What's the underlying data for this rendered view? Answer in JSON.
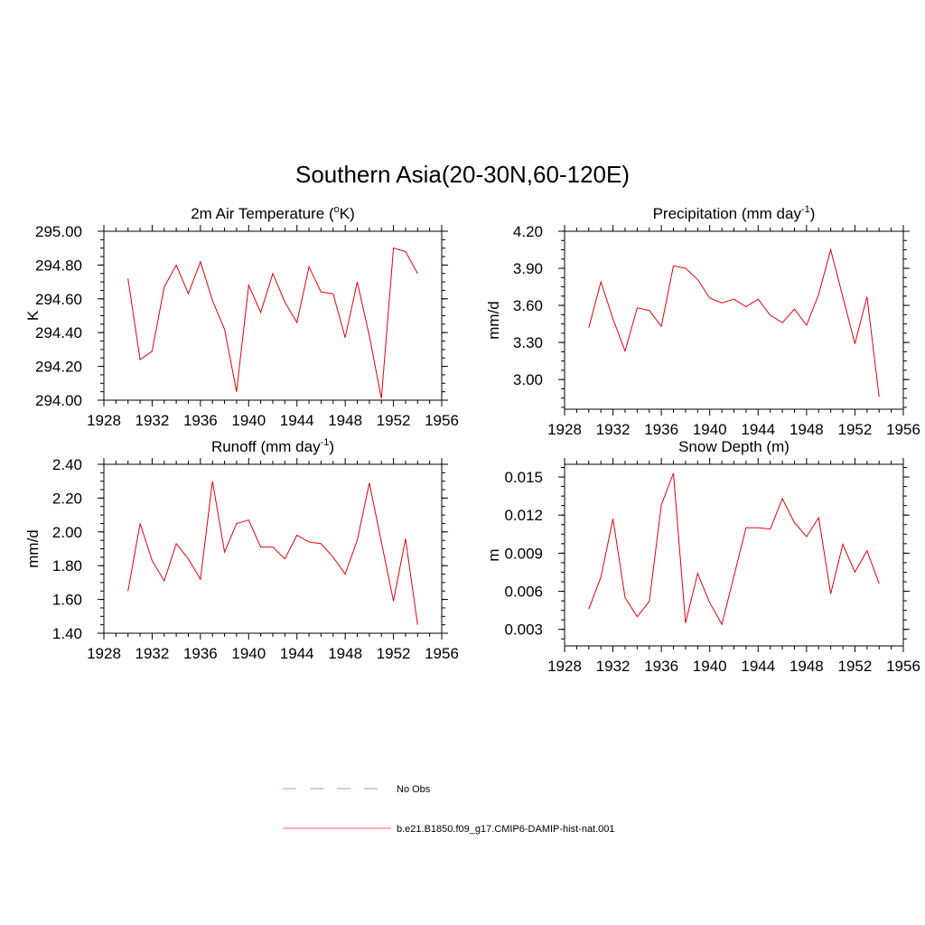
{
  "figure": {
    "title": "Southern Asia(20-30N,60-120E)",
    "x_ticks": [
      "1928",
      "1932",
      "1936",
      "1940",
      "1944",
      "1948",
      "1952",
      "1956"
    ]
  },
  "legend": {
    "entries": [
      {
        "label": "No Obs",
        "color": "#9999ff",
        "style": "dashed"
      },
      {
        "label": "b.e21.B1850.f09_g17.CMIP6-DAMIP-hist-nat.001",
        "color": "#ff6666",
        "style": "solid"
      }
    ]
  },
  "chart_data": [
    {
      "type": "line",
      "title": "2m Air Temperature (",
      "title_sup": "o",
      "title_suffix": "K)",
      "ylabel": "K",
      "xlim": [
        1928,
        1956
      ],
      "ylim": [
        294.0,
        295.0
      ],
      "y_ticks": [
        "294.00",
        "294.20",
        "294.40",
        "294.60",
        "294.80",
        "295.00"
      ],
      "y_minor_step": 0.05,
      "line_color": "#e8000b",
      "series": [
        {
          "name": "b.e21.B1850.f09_g17.CMIP6-DAMIP-hist-nat.001",
          "x": [
            1930,
            1931,
            1932,
            1933,
            1934,
            1935,
            1936,
            1937,
            1938,
            1939,
            1940,
            1941,
            1942,
            1943,
            1944,
            1945,
            1946,
            1947,
            1948,
            1949,
            1950,
            1951,
            1952,
            1953,
            1954
          ],
          "y": [
            294.72,
            294.24,
            294.29,
            294.67,
            294.8,
            294.63,
            294.82,
            294.59,
            294.42,
            294.05,
            294.68,
            294.52,
            294.75,
            294.58,
            294.46,
            294.79,
            294.64,
            294.63,
            294.37,
            294.7,
            294.38,
            294.01,
            294.9,
            294.88,
            294.75
          ]
        }
      ]
    },
    {
      "type": "line",
      "title": "Precipitation (mm day",
      "title_sup": "-1",
      "title_suffix": ")",
      "ylabel": "mm/d",
      "xlim": [
        1928,
        1956
      ],
      "ylim": [
        2.76,
        4.2
      ],
      "y_ticks": [
        "3.00",
        "3.30",
        "3.60",
        "3.90",
        "4.20"
      ],
      "y_minor_step": 0.075,
      "line_color": "#e8000b",
      "series": [
        {
          "name": "b.e21.B1850.f09_g17.CMIP6-DAMIP-hist-nat.001",
          "x": [
            1930,
            1931,
            1932,
            1933,
            1934,
            1935,
            1936,
            1937,
            1938,
            1939,
            1940,
            1941,
            1942,
            1943,
            1944,
            1945,
            1946,
            1947,
            1948,
            1949,
            1950,
            1951,
            1952,
            1953,
            1954
          ],
          "y": [
            3.42,
            3.79,
            3.49,
            3.23,
            3.58,
            3.56,
            3.43,
            3.92,
            3.9,
            3.81,
            3.66,
            3.62,
            3.65,
            3.59,
            3.65,
            3.52,
            3.46,
            3.57,
            3.44,
            3.69,
            4.05,
            3.67,
            3.29,
            3.67,
            2.86
          ]
        }
      ]
    },
    {
      "type": "line",
      "title": "Runoff (mm day",
      "title_sup": "-1",
      "title_suffix": ")",
      "ylabel": "mm/d",
      "xlim": [
        1928,
        1956
      ],
      "ylim": [
        1.4,
        2.4
      ],
      "y_ticks": [
        "1.40",
        "1.60",
        "1.80",
        "2.00",
        "2.20",
        "2.40"
      ],
      "y_minor_step": 0.05,
      "line_color": "#e8000b",
      "series": [
        {
          "name": "b.e21.B1850.f09_g17.CMIP6-DAMIP-hist-nat.001",
          "x": [
            1930,
            1931,
            1932,
            1933,
            1934,
            1935,
            1936,
            1937,
            1938,
            1939,
            1940,
            1941,
            1942,
            1943,
            1944,
            1945,
            1946,
            1947,
            1948,
            1949,
            1950,
            1951,
            1952,
            1953,
            1954
          ],
          "y": [
            1.65,
            2.05,
            1.83,
            1.71,
            1.93,
            1.84,
            1.72,
            2.3,
            1.88,
            2.05,
            2.07,
            1.91,
            1.91,
            1.84,
            1.98,
            1.94,
            1.93,
            1.85,
            1.75,
            1.95,
            2.29,
            1.94,
            1.59,
            1.96,
            1.45
          ]
        }
      ]
    },
    {
      "type": "line",
      "title": "Snow Depth (m)",
      "title_sup": "",
      "title_suffix": "",
      "ylabel": "m",
      "xlim": [
        1928,
        1956
      ],
      "ylim": [
        0.0017,
        0.016
      ],
      "y_ticks": [
        "0.003",
        "0.006",
        "0.009",
        "0.012",
        "0.015"
      ],
      "y_minor_step": 0.00075,
      "line_color": "#e8000b",
      "series": [
        {
          "name": "b.e21.B1850.f09_g17.CMIP6-DAMIP-hist-nat.001",
          "x": [
            1930,
            1931,
            1932,
            1933,
            1934,
            1935,
            1936,
            1937,
            1938,
            1939,
            1940,
            1941,
            1942,
            1943,
            1944,
            1945,
            1946,
            1947,
            1948,
            1949,
            1950,
            1951,
            1952,
            1953,
            1954
          ],
          "y": [
            0.0046,
            0.0071,
            0.0117,
            0.0055,
            0.004,
            0.0052,
            0.0128,
            0.0153,
            0.0035,
            0.0074,
            0.0051,
            0.0034,
            0.0072,
            0.011,
            0.011,
            0.0109,
            0.0133,
            0.0114,
            0.0103,
            0.0118,
            0.0058,
            0.0097,
            0.0075,
            0.0092,
            0.0066
          ]
        }
      ]
    }
  ]
}
